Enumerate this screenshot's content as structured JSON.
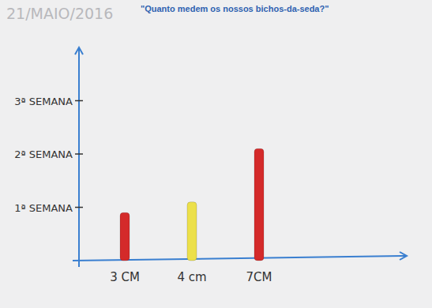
{
  "chart_data": {
    "type": "bar",
    "title": "\"Quanto medem os nossos bichos-da-seda?\"",
    "subtitle": "21/MAIO/2016",
    "categories": [
      "3 CM",
      "4 cm",
      "7CM"
    ],
    "values": [
      0.9,
      1.1,
      2.1
    ],
    "colors": [
      "#d42a2a",
      "#ece04a",
      "#d42a2a"
    ],
    "ylim": [
      0,
      4
    ],
    "yticks": [
      {
        "value": 1,
        "label": "1ª SEMANA"
      },
      {
        "value": 2,
        "label": "2ª SEMANA"
      },
      {
        "value": 3,
        "label": "3ª SEMANA"
      }
    ],
    "grid": false
  }
}
